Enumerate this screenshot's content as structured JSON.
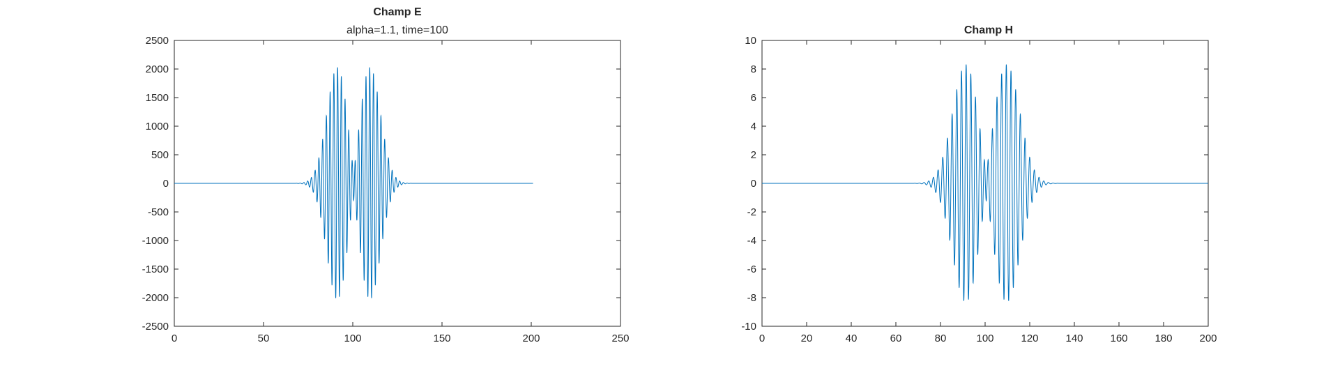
{
  "figure": {
    "background": "#ffffff",
    "line_color": "#0072BD",
    "axis_color": "#262626"
  },
  "chart_data": [
    {
      "type": "line",
      "title": "Champ E",
      "subtitle": "alpha=1.1, time=100",
      "xlabel": "",
      "ylabel": "",
      "xlim": [
        0,
        250
      ],
      "ylim": [
        -2500,
        2500
      ],
      "xticks": [
        0,
        50,
        100,
        150,
        200,
        250
      ],
      "yticks": [
        -2500,
        -2000,
        -1500,
        -1000,
        -500,
        0,
        500,
        1000,
        1500,
        2000,
        2500
      ],
      "grid": false,
      "series": [
        {
          "color": "#0072BD",
          "x_range": [
            0,
            201
          ],
          "components": [
            {
              "center": 91.5,
              "width": 8.5,
              "amplitude": 2050,
              "period": 2.1
            },
            {
              "center": 109.5,
              "width": 8.5,
              "amplitude": 2050,
              "period": 2.1
            }
          ]
        }
      ]
    },
    {
      "type": "line",
      "title": "Champ H",
      "subtitle": "",
      "xlabel": "",
      "ylabel": "",
      "xlim": [
        0,
        200
      ],
      "ylim": [
        -10,
        10
      ],
      "xticks": [
        0,
        20,
        40,
        60,
        80,
        100,
        120,
        140,
        160,
        180,
        200
      ],
      "yticks": [
        -10,
        -8,
        -6,
        -4,
        -2,
        0,
        2,
        4,
        6,
        8,
        10
      ],
      "grid": false,
      "series": [
        {
          "color": "#0072BD",
          "x_range": [
            0,
            200
          ],
          "components": [
            {
              "center": 91.5,
              "width": 8.5,
              "amplitude": 8.4,
              "period": 2.1
            },
            {
              "center": 109.5,
              "width": 8.5,
              "amplitude": 8.4,
              "period": 2.1
            }
          ]
        }
      ]
    }
  ]
}
